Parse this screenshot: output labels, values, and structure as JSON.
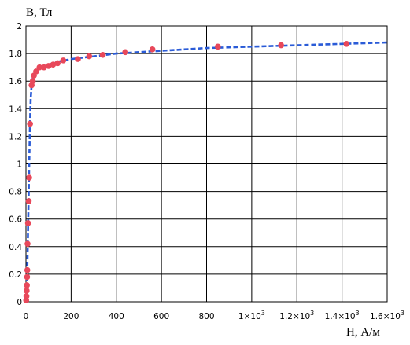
{
  "chart_data": {
    "type": "scatter",
    "title": "",
    "xlabel": "H, А/м",
    "ylabel": "B, Тл",
    "xlim": [
      0,
      1600
    ],
    "ylim": [
      0,
      2
    ],
    "grid": true,
    "x_ticks": [
      0,
      200,
      400,
      600,
      800,
      1000,
      1200,
      1400,
      1600
    ],
    "x_tick_labels": [
      {
        "base": "0",
        "exp": ""
      },
      {
        "base": "200",
        "exp": ""
      },
      {
        "base": "400",
        "exp": ""
      },
      {
        "base": "600",
        "exp": ""
      },
      {
        "base": "800",
        "exp": ""
      },
      {
        "base": "1×10",
        "exp": "3"
      },
      {
        "base": "1.2×10",
        "exp": "3"
      },
      {
        "base": "1.4×10",
        "exp": "3"
      },
      {
        "base": "1.6×10",
        "exp": "3"
      }
    ],
    "y_ticks": [
      0,
      0.2,
      0.4,
      0.6,
      0.8,
      1,
      1.2,
      1.4,
      1.6,
      1.8,
      2
    ],
    "y_tick_labels": [
      "0",
      "0.2",
      "0.4",
      "0.6",
      "0.8",
      "1",
      "1.2",
      "1.4",
      "1.6",
      "1.8",
      "2"
    ],
    "series": [
      {
        "kind": "points",
        "color": "#e8485a",
        "x": [
          1,
          2,
          3,
          4,
          5,
          6,
          7,
          9,
          12,
          14,
          18,
          25,
          30,
          35,
          45,
          60,
          80,
          100,
          120,
          140,
          165,
          230,
          280,
          340,
          440,
          560,
          850,
          1130,
          1420
        ],
        "y": [
          0.01,
          0.04,
          0.08,
          0.12,
          0.18,
          0.23,
          0.42,
          0.57,
          0.73,
          0.9,
          1.29,
          1.57,
          1.6,
          1.64,
          1.67,
          1.7,
          1.7,
          1.71,
          1.72,
          1.73,
          1.75,
          1.76,
          1.78,
          1.79,
          1.81,
          1.83,
          1.85,
          1.86,
          1.87
        ]
      },
      {
        "kind": "fit-line",
        "color": "#2a5bd7",
        "style": "dashed",
        "x": [
          0,
          2,
          4,
          6,
          8,
          10,
          12,
          15,
          18,
          21,
          25,
          30,
          40,
          50,
          70,
          100,
          140,
          200,
          300,
          400,
          500,
          600,
          800,
          1000,
          1200,
          1400,
          1600
        ],
        "y": [
          0,
          0.05,
          0.13,
          0.26,
          0.42,
          0.6,
          0.78,
          1.05,
          1.3,
          1.47,
          1.57,
          1.62,
          1.66,
          1.68,
          1.7,
          1.72,
          1.74,
          1.76,
          1.78,
          1.8,
          1.81,
          1.82,
          1.84,
          1.85,
          1.86,
          1.87,
          1.88
        ]
      }
    ]
  }
}
